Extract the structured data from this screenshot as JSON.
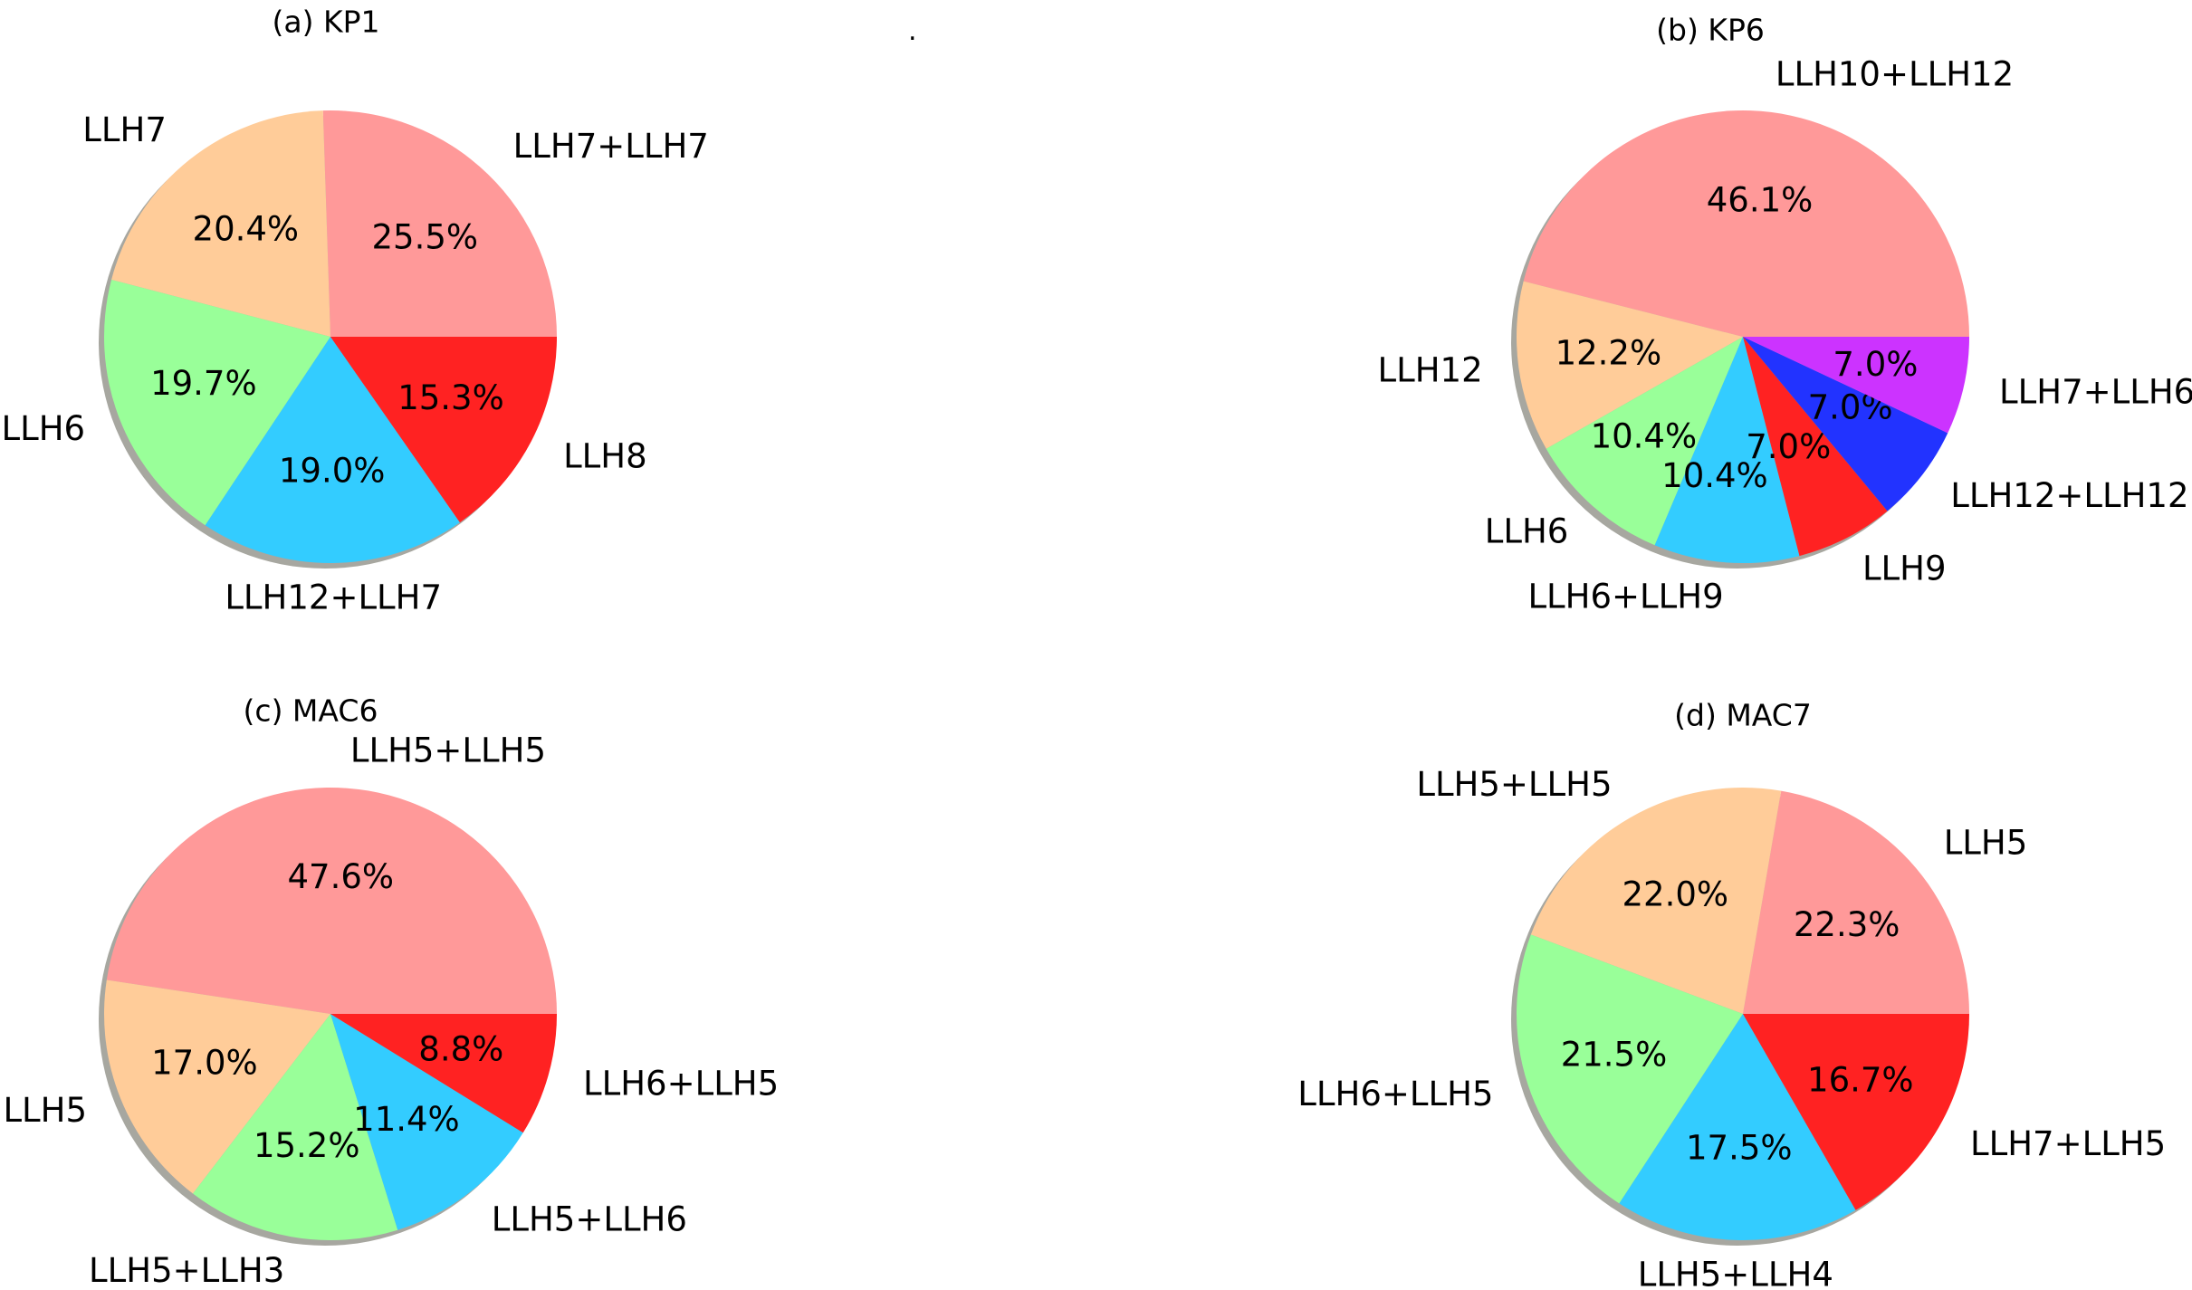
{
  "chart_data": [
    {
      "type": "pie",
      "title": "(a) KP1",
      "categories": [
        "LLH7+LLH7",
        "LLH7",
        "LLH6",
        "LLH12+LLH7",
        "LLH8"
      ],
      "values": [
        25.5,
        20.4,
        19.7,
        19.0,
        15.3
      ],
      "pct_labels": [
        "25.5%",
        "20.4%",
        "19.7%",
        "19.0%",
        "15.3%"
      ],
      "colors": [
        "#ff9999",
        "#ffcc99",
        "#99ff99",
        "#33ccff",
        "#ff2222"
      ],
      "start_angle": 0,
      "shadow": true
    },
    {
      "type": "pie",
      "title": "(b) KP6",
      "categories": [
        "LLH10+LLH12",
        "LLH12",
        "LLH6",
        "LLH6+LLH9",
        "LLH9",
        "LLH12+LLH12",
        "LLH7+LLH6"
      ],
      "values": [
        46.1,
        12.2,
        10.4,
        10.4,
        7.0,
        7.0,
        7.0
      ],
      "pct_labels": [
        "46.1%",
        "12.2%",
        "10.4%",
        "10.4%",
        "7.0%",
        "7.0%",
        "7.0%"
      ],
      "colors": [
        "#ff9999",
        "#ffcc99",
        "#99ff99",
        "#33ccff",
        "#ff2222",
        "#2233ff",
        "#cc33ff"
      ],
      "start_angle": 0,
      "shadow": true
    },
    {
      "type": "pie",
      "title": "(c) MAC6",
      "categories": [
        "LLH5+LLH5",
        "LLH5",
        "LLH5+LLH3",
        "LLH5+LLH6",
        "LLH6+LLH5"
      ],
      "values": [
        47.6,
        17.0,
        15.2,
        11.4,
        8.8
      ],
      "pct_labels": [
        "47.6%",
        "17.0%",
        "15.2%",
        "11.4%",
        "8.8%"
      ],
      "colors": [
        "#ff9999",
        "#ffcc99",
        "#99ff99",
        "#33ccff",
        "#ff2222"
      ],
      "start_angle": 0,
      "shadow": true
    },
    {
      "type": "pie",
      "title": "(d) MAC7",
      "categories": [
        "LLH5",
        "LLH5+LLH5",
        "LLH6+LLH5",
        "LLH5+LLH4",
        "LLH7+LLH5"
      ],
      "values": [
        22.3,
        22.0,
        21.5,
        17.5,
        16.7
      ],
      "pct_labels": [
        "22.3%",
        "22.0%",
        "21.5%",
        "17.5%",
        "16.7%"
      ],
      "colors": [
        "#ff9999",
        "#ffcc99",
        "#99ff99",
        "#33ccff",
        "#ff2222"
      ],
      "start_angle": 0,
      "shadow": true
    }
  ],
  "stray_mark": "."
}
